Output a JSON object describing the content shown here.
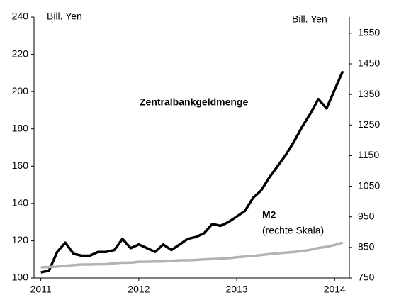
{
  "chart_data": {
    "type": "line",
    "y_label": "Bill. Yen",
    "y2_label": "Bill. Yen",
    "annotation": "(rechte Skala)",
    "x": [
      2011,
      2011.0833,
      2011.1667,
      2011.25,
      2011.3333,
      2011.4167,
      2011.5,
      2011.5833,
      2011.6667,
      2011.75,
      2011.8333,
      2011.9167,
      2012,
      2012.0833,
      2012.1667,
      2012.25,
      2012.3333,
      2012.4167,
      2012.5,
      2012.5833,
      2012.6667,
      2012.75,
      2012.8333,
      2012.9167,
      2013,
      2013.0833,
      2013.1667,
      2013.25,
      2013.3333,
      2013.4167,
      2013.5,
      2013.5833,
      2013.6667,
      2013.75,
      2013.8333,
      2013.9167,
      2014,
      2014.0833
    ],
    "xlim": [
      2010.93,
      2014.15
    ],
    "xticks": [
      2011,
      2012,
      2013,
      2014
    ],
    "ylim": [
      100,
      240
    ],
    "yticks": [
      100,
      120,
      140,
      160,
      180,
      200,
      220,
      240
    ],
    "y2lim": [
      750,
      1603
    ],
    "y2ticks": [
      750,
      850,
      950,
      1050,
      1150,
      1250,
      1350,
      1450,
      1550
    ],
    "series": [
      {
        "name": "Zentralbankgeldmenge",
        "color": "#000000",
        "values": [
          103,
          104,
          114,
          119,
          113,
          112,
          112,
          114,
          114,
          115,
          121,
          116,
          118,
          116,
          114,
          118,
          115,
          118,
          121,
          122,
          124,
          129,
          128,
          130,
          133,
          136,
          143,
          147,
          154,
          160,
          166,
          173,
          181,
          188,
          196,
          191,
          201,
          211
        ]
      },
      {
        "name": "M2",
        "color": "#b3b3b3",
        "axis": "y2",
        "values": [
          785,
          786,
          787,
          790,
          792,
          794,
          794,
          795,
          795,
          798,
          800,
          800,
          803,
          803,
          804,
          804,
          806,
          808,
          808,
          809,
          811,
          812,
          813,
          815,
          818,
          820,
          822,
          825,
          828,
          831,
          833,
          835,
          838,
          842,
          848,
          852,
          858,
          866
        ]
      }
    ]
  }
}
